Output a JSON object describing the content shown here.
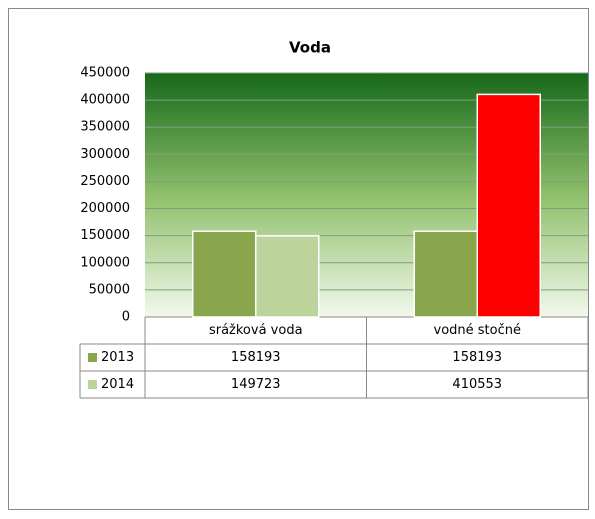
{
  "chart_data": {
    "type": "bar",
    "title": "Voda",
    "categories": [
      "srážková voda",
      "vodné stočné"
    ],
    "series": [
      {
        "name": "2013",
        "color": "#8aa64d",
        "values": [
          158193,
          158193
        ]
      },
      {
        "name": "2014",
        "color": "#bcd39b",
        "colors": [
          "#bcd39b",
          "#ff0000"
        ],
        "values": [
          149723,
          410553
        ]
      }
    ],
    "ylim": [
      0,
      450000
    ],
    "yticks": [
      0,
      50000,
      100000,
      150000,
      200000,
      250000,
      300000,
      350000,
      400000,
      450000
    ],
    "grid": true,
    "data_table": true
  }
}
